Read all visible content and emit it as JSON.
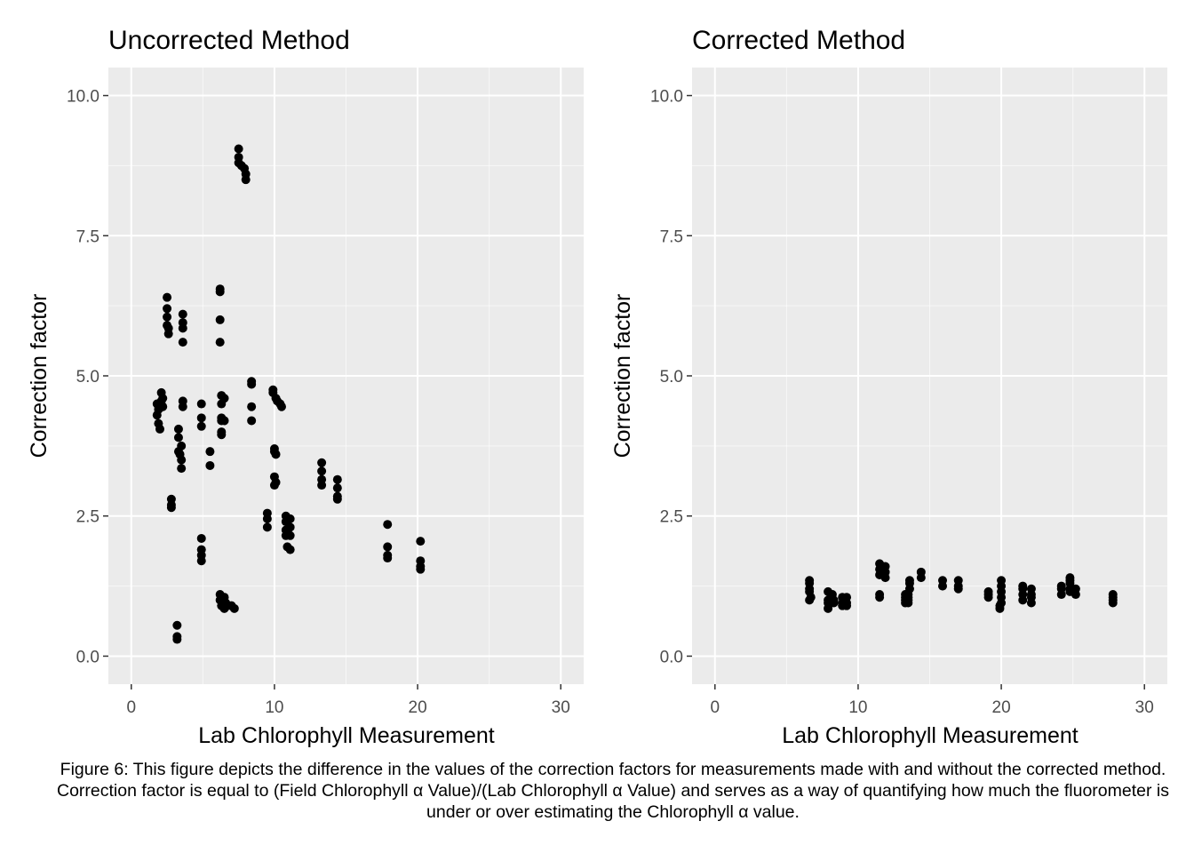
{
  "caption": "Figure 6: This figure depicts the difference in the values of the correction factors for measurements made with and without the corrected method. Correction factor is equal to (Field Chlorophyll α Value)/(Lab Chlorophyll α Value) and serves as a way of quantifying how much the fluorometer is under or over estimating the Chlorophyll α value.",
  "colors": {
    "panel_bg": "#ebebeb",
    "grid_major": "#ffffff",
    "point": "#000000",
    "tick_text": "#4d4d4d"
  },
  "chart_data": [
    {
      "type": "scatter",
      "title": "Uncorrected Method",
      "xlabel": "Lab Chlorophyll Measurement",
      "ylabel": "Correction factor",
      "xlim": [
        -1.6,
        31.6
      ],
      "ylim": [
        -0.5,
        10.5
      ],
      "xticks": [
        0,
        10,
        20,
        30
      ],
      "xtick_labels": [
        "0",
        "10",
        "20",
        "30"
      ],
      "yticks": [
        0,
        2.5,
        5,
        7.5,
        10
      ],
      "ytick_labels": [
        "0.0",
        "2.5",
        "5.0",
        "7.5",
        "10.0"
      ],
      "grid": true,
      "points": [
        [
          1.8,
          4.3
        ],
        [
          1.8,
          4.5
        ],
        [
          1.9,
          4.15
        ],
        [
          1.9,
          4.4
        ],
        [
          2.0,
          4.05
        ],
        [
          2.1,
          4.55
        ],
        [
          2.1,
          4.7
        ],
        [
          2.2,
          4.45
        ],
        [
          2.2,
          4.6
        ],
        [
          2.5,
          6.4
        ],
        [
          2.5,
          6.2
        ],
        [
          2.5,
          6.05
        ],
        [
          2.5,
          5.9
        ],
        [
          2.6,
          5.75
        ],
        [
          2.6,
          5.85
        ],
        [
          2.8,
          2.8
        ],
        [
          2.8,
          2.7
        ],
        [
          2.8,
          2.65
        ],
        [
          3.2,
          0.55
        ],
        [
          3.2,
          0.35
        ],
        [
          3.2,
          0.3
        ],
        [
          3.3,
          4.05
        ],
        [
          3.3,
          3.9
        ],
        [
          3.3,
          3.65
        ],
        [
          3.4,
          3.6
        ],
        [
          3.5,
          3.75
        ],
        [
          3.5,
          3.5
        ],
        [
          3.5,
          3.35
        ],
        [
          3.6,
          6.1
        ],
        [
          3.6,
          5.95
        ],
        [
          3.6,
          5.85
        ],
        [
          3.6,
          5.6
        ],
        [
          3.6,
          4.55
        ],
        [
          3.6,
          4.45
        ],
        [
          4.9,
          4.5
        ],
        [
          4.9,
          4.25
        ],
        [
          4.9,
          4.1
        ],
        [
          4.9,
          2.1
        ],
        [
          4.9,
          1.9
        ],
        [
          4.9,
          1.8
        ],
        [
          4.9,
          1.7
        ],
        [
          5.5,
          3.65
        ],
        [
          5.5,
          3.4
        ],
        [
          6.2,
          6.5
        ],
        [
          6.2,
          6.55
        ],
        [
          6.2,
          6.0
        ],
        [
          6.2,
          5.6
        ],
        [
          6.3,
          4.65
        ],
        [
          6.3,
          4.5
        ],
        [
          6.3,
          4.25
        ],
        [
          6.3,
          4.2
        ],
        [
          6.3,
          4.0
        ],
        [
          6.3,
          3.95
        ],
        [
          6.5,
          4.6
        ],
        [
          6.5,
          4.2
        ],
        [
          6.2,
          1.1
        ],
        [
          6.2,
          1.0
        ],
        [
          6.3,
          0.9
        ],
        [
          6.4,
          0.95
        ],
        [
          6.5,
          1.05
        ],
        [
          6.6,
          0.95
        ],
        [
          6.7,
          0.9
        ],
        [
          6.5,
          0.85
        ],
        [
          7.0,
          0.9
        ],
        [
          7.2,
          0.85
        ],
        [
          7.5,
          9.05
        ],
        [
          7.5,
          8.9
        ],
        [
          7.5,
          8.8
        ],
        [
          7.7,
          8.75
        ],
        [
          7.9,
          8.7
        ],
        [
          8.0,
          8.6
        ],
        [
          8.0,
          8.5
        ],
        [
          8.4,
          4.85
        ],
        [
          8.4,
          4.9
        ],
        [
          8.4,
          4.45
        ],
        [
          8.4,
          4.2
        ],
        [
          9.5,
          2.55
        ],
        [
          9.5,
          2.45
        ],
        [
          9.5,
          2.3
        ],
        [
          9.9,
          4.75
        ],
        [
          9.9,
          4.7
        ],
        [
          10.1,
          4.6
        ],
        [
          10.2,
          4.55
        ],
        [
          10.4,
          4.5
        ],
        [
          10.5,
          4.45
        ],
        [
          10.0,
          3.7
        ],
        [
          10.0,
          3.65
        ],
        [
          10.1,
          3.6
        ],
        [
          10.0,
          3.2
        ],
        [
          10.0,
          3.05
        ],
        [
          10.1,
          3.1
        ],
        [
          10.8,
          2.5
        ],
        [
          10.8,
          2.4
        ],
        [
          10.8,
          2.25
        ],
        [
          10.8,
          2.15
        ],
        [
          10.9,
          1.95
        ],
        [
          11.1,
          2.45
        ],
        [
          11.1,
          2.3
        ],
        [
          11.1,
          2.15
        ],
        [
          11.1,
          1.9
        ],
        [
          13.3,
          3.45
        ],
        [
          13.3,
          3.3
        ],
        [
          13.3,
          3.15
        ],
        [
          13.3,
          3.05
        ],
        [
          14.4,
          3.15
        ],
        [
          14.4,
          3.0
        ],
        [
          14.4,
          2.85
        ],
        [
          14.4,
          2.8
        ],
        [
          17.9,
          2.35
        ],
        [
          17.9,
          1.95
        ],
        [
          17.9,
          1.8
        ],
        [
          17.9,
          1.75
        ],
        [
          20.2,
          2.05
        ],
        [
          20.2,
          1.7
        ],
        [
          20.2,
          1.6
        ],
        [
          20.2,
          1.55
        ]
      ]
    },
    {
      "type": "scatter",
      "title": "Corrected Method",
      "xlabel": "Lab Chlorophyll Measurement",
      "ylabel": "Correction factor",
      "xlim": [
        -1.6,
        31.6
      ],
      "ylim": [
        -0.5,
        10.5
      ],
      "xticks": [
        0,
        10,
        20,
        30
      ],
      "xtick_labels": [
        "0",
        "10",
        "20",
        "30"
      ],
      "yticks": [
        0,
        2.5,
        5,
        7.5,
        10
      ],
      "ytick_labels": [
        "0.0",
        "2.5",
        "5.0",
        "7.5",
        "10.0"
      ],
      "grid": true,
      "points": [
        [
          6.6,
          1.35
        ],
        [
          6.6,
          1.3
        ],
        [
          6.6,
          1.2
        ],
        [
          6.6,
          1.15
        ],
        [
          6.6,
          1.0
        ],
        [
          6.7,
          1.05
        ],
        [
          7.9,
          1.15
        ],
        [
          7.9,
          1.0
        ],
        [
          7.9,
          0.95
        ],
        [
          7.9,
          0.85
        ],
        [
          8.2,
          1.1
        ],
        [
          8.3,
          1.0
        ],
        [
          8.3,
          0.95
        ],
        [
          8.9,
          1.05
        ],
        [
          8.9,
          0.95
        ],
        [
          8.9,
          0.9
        ],
        [
          9.2,
          1.05
        ],
        [
          9.2,
          0.95
        ],
        [
          9.2,
          0.9
        ],
        [
          11.5,
          1.65
        ],
        [
          11.5,
          1.55
        ],
        [
          11.5,
          1.45
        ],
        [
          11.5,
          1.1
        ],
        [
          11.5,
          1.05
        ],
        [
          11.9,
          1.6
        ],
        [
          11.9,
          1.5
        ],
        [
          11.9,
          1.4
        ],
        [
          13.3,
          1.1
        ],
        [
          13.3,
          1.05
        ],
        [
          13.3,
          1.0
        ],
        [
          13.3,
          0.95
        ],
        [
          13.5,
          1.1
        ],
        [
          13.5,
          1.05
        ],
        [
          13.5,
          1.0
        ],
        [
          13.5,
          0.95
        ],
        [
          13.6,
          1.35
        ],
        [
          13.6,
          1.3
        ],
        [
          13.6,
          1.2
        ],
        [
          14.4,
          1.5
        ],
        [
          14.4,
          1.4
        ],
        [
          15.9,
          1.35
        ],
        [
          15.9,
          1.25
        ],
        [
          17.0,
          1.35
        ],
        [
          17.0,
          1.25
        ],
        [
          17.0,
          1.2
        ],
        [
          19.1,
          1.15
        ],
        [
          19.1,
          1.1
        ],
        [
          19.1,
          1.05
        ],
        [
          20.0,
          1.35
        ],
        [
          20.0,
          1.25
        ],
        [
          20.0,
          1.15
        ],
        [
          20.0,
          1.05
        ],
        [
          20.0,
          0.95
        ],
        [
          19.9,
          0.9
        ],
        [
          19.9,
          0.85
        ],
        [
          21.5,
          1.25
        ],
        [
          21.5,
          1.2
        ],
        [
          21.5,
          1.1
        ],
        [
          21.5,
          1.0
        ],
        [
          22.1,
          1.2
        ],
        [
          22.1,
          1.1
        ],
        [
          22.1,
          1.05
        ],
        [
          22.1,
          0.95
        ],
        [
          24.2,
          1.25
        ],
        [
          24.2,
          1.2
        ],
        [
          24.2,
          1.1
        ],
        [
          24.8,
          1.4
        ],
        [
          24.8,
          1.35
        ],
        [
          24.8,
          1.3
        ],
        [
          24.8,
          1.2
        ],
        [
          24.8,
          1.15
        ],
        [
          25.2,
          1.2
        ],
        [
          25.2,
          1.1
        ],
        [
          27.8,
          1.1
        ],
        [
          27.8,
          1.05
        ],
        [
          27.8,
          1.0
        ],
        [
          27.8,
          0.95
        ]
      ]
    }
  ]
}
